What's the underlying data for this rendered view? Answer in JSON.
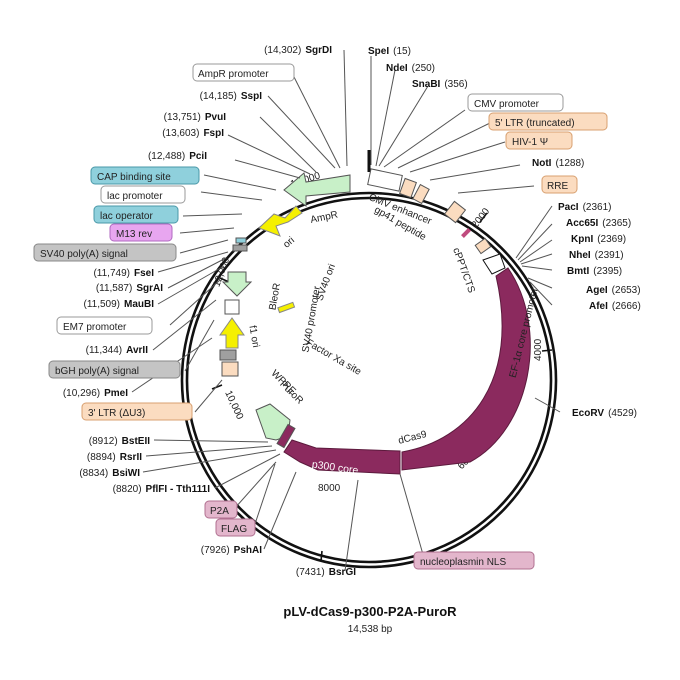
{
  "title": "pLV-dCas9-p300-P2A-PuroR",
  "subtitle": "14,538 bp",
  "ticks": [
    {
      "text": "2000"
    },
    {
      "text": "4000"
    },
    {
      "text": "6000"
    },
    {
      "text": "8000"
    },
    {
      "text": "10,000"
    },
    {
      "text": "12,000"
    },
    {
      "text": "14,000"
    }
  ],
  "right_sites": [
    {
      "name": "SpeI",
      "pos": "(15)"
    },
    {
      "name": "NdeI",
      "pos": "(250)"
    },
    {
      "name": "SnaBI",
      "pos": "(356)"
    },
    {
      "name": "NotI",
      "pos": "(1288)"
    },
    {
      "name": "PacI",
      "pos": "(2361)"
    },
    {
      "name": "Acc65I",
      "pos": "(2365)"
    },
    {
      "name": "KpnI",
      "pos": "(2369)"
    },
    {
      "name": "NheI",
      "pos": "(2391)"
    },
    {
      "name": "BmtI",
      "pos": "(2395)"
    },
    {
      "name": "AgeI",
      "pos": "(2653)"
    },
    {
      "name": "AfeI",
      "pos": "(2666)"
    },
    {
      "name": "EcoRV",
      "pos": "(4529)"
    }
  ],
  "left_sites": [
    {
      "name": "SgrDI",
      "pos": "(14,302)"
    },
    {
      "name": "SspI",
      "pos": "(14,185)"
    },
    {
      "name": "PvuI",
      "pos": "(13,751)"
    },
    {
      "name": "FspI",
      "pos": "(13,603)"
    },
    {
      "name": "PciI",
      "pos": "(12,488)"
    },
    {
      "name": "FseI",
      "pos": "(11,749)"
    },
    {
      "name": "SgrAI",
      "pos": "(11,587)"
    },
    {
      "name": "MauBI",
      "pos": "(11,509)"
    },
    {
      "name": "AvrII",
      "pos": "(11,344)"
    },
    {
      "name": "PmeI",
      "pos": "(10,296)"
    },
    {
      "name": "BstEII",
      "pos": "(8912)"
    },
    {
      "name": "RsrII",
      "pos": "(8894)"
    },
    {
      "name": "BsiWI",
      "pos": "(8834)"
    },
    {
      "name": "PflFI - Tth111I",
      "pos": "(8820)"
    },
    {
      "name": "PshAI",
      "pos": "(7926)"
    },
    {
      "name": "BsrGI",
      "pos": "(7431)"
    }
  ],
  "outer_features": [
    {
      "text": "AmpR promoter",
      "color": "#ffffff"
    },
    {
      "text": "CMV promoter",
      "color": "#ffffff"
    },
    {
      "text": "5' LTR (truncated)",
      "color": "#fbdcc0"
    },
    {
      "text": "HIV-1 Ψ",
      "color": "#fbdcc0"
    },
    {
      "text": "RRE",
      "color": "#fbdcc0"
    },
    {
      "text": "CAP binding site",
      "color": "#8fd0dc"
    },
    {
      "text": "lac promoter",
      "color": "#ffffff"
    },
    {
      "text": "lac operator",
      "color": "#8fd0dc"
    },
    {
      "text": "M13 rev",
      "color": "#e8a6f0"
    },
    {
      "text": "SV40 poly(A) signal",
      "color": "#c4c4c4"
    },
    {
      "text": "EM7 promoter",
      "color": "#ffffff"
    },
    {
      "text": "bGH poly(A) signal",
      "color": "#c4c4c4"
    },
    {
      "text": "3' LTR (ΔU3)",
      "color": "#fbdcc0"
    },
    {
      "text": "P2A",
      "color": "#e3b6cc"
    },
    {
      "text": "FLAG",
      "color": "#e3b6cc"
    },
    {
      "text": "nucleoplasmin NLS",
      "color": "#e3b6cc"
    }
  ],
  "inner_labels": {
    "ampr": "AmpR",
    "ori": "ori",
    "cmv_enhancer": "CMV enhancer",
    "gp41": "gp41 peptide",
    "cppt": "cPPT/CTS",
    "ef1a": "EF-1α core promoter",
    "dcas9": "dCas9",
    "p300": "p300 core",
    "factor_xa": "Factor Xa site",
    "sv40_ori": "SV40 ori",
    "bleor": "BleoR",
    "sv40_promoter": "SV40 promoter",
    "f1_ori": "f1 ori",
    "wpre": "WPRE",
    "puror": "PuroR"
  },
  "colors": {
    "backbone": "#111111",
    "maroon": "#8b2a5e",
    "green": "#c8f0c8",
    "yellow": "#f5f000",
    "peach": "#fbdcc0",
    "grey": "#a0a0a0"
  }
}
